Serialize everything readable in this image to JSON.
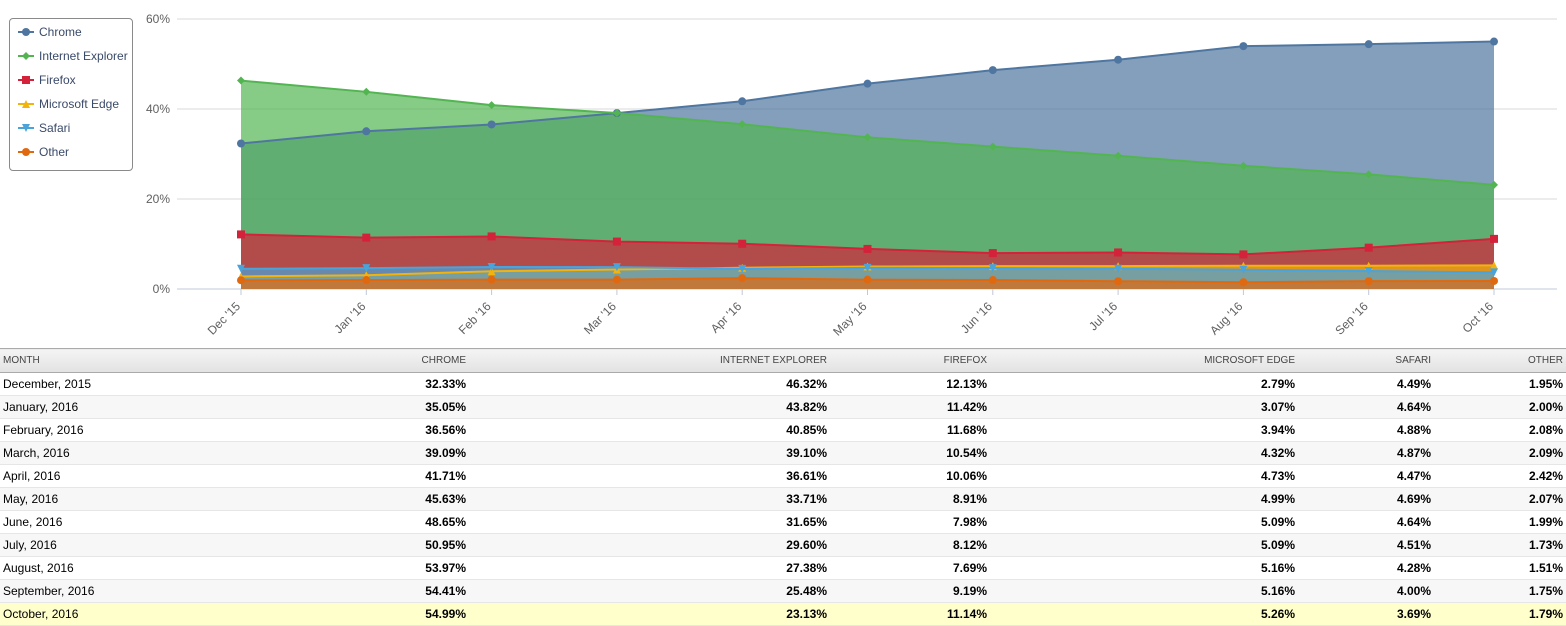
{
  "chart_data": {
    "type": "area",
    "categories": [
      "Dec '15",
      "Jan '16",
      "Feb '16",
      "Mar '16",
      "Apr '16",
      "May '16",
      "Jun '16",
      "Jul '16",
      "Aug '16",
      "Sep '16",
      "Oct '16"
    ],
    "y_ticks": [
      "0%",
      "20%",
      "40%",
      "60%"
    ],
    "ylim": [
      0,
      60
    ],
    "grid": true,
    "legend_position": "top-left",
    "series": [
      {
        "name": "Chrome",
        "color": "#4f76a0",
        "marker": "circle",
        "values": [
          32.33,
          35.05,
          36.56,
          39.09,
          41.71,
          45.63,
          48.65,
          50.95,
          53.97,
          54.41,
          54.99
        ]
      },
      {
        "name": "Internet Explorer",
        "color": "#52b552",
        "marker": "diamond",
        "values": [
          46.32,
          43.82,
          40.85,
          39.1,
          36.61,
          33.71,
          31.65,
          29.6,
          27.38,
          25.48,
          23.13
        ]
      },
      {
        "name": "Firefox",
        "color": "#d3223a",
        "marker": "square",
        "values": [
          12.13,
          11.42,
          11.68,
          10.54,
          10.06,
          8.91,
          7.98,
          8.12,
          7.69,
          9.19,
          11.14
        ]
      },
      {
        "name": "Microsoft Edge",
        "color": "#f2b40c",
        "marker": "triangle",
        "values": [
          2.79,
          3.07,
          3.94,
          4.32,
          4.73,
          4.99,
          5.09,
          5.09,
          5.16,
          5.16,
          5.26
        ]
      },
      {
        "name": "Safari",
        "color": "#4aa3d9",
        "marker": "triangle-down",
        "values": [
          4.49,
          4.64,
          4.88,
          4.87,
          4.47,
          4.69,
          4.64,
          4.51,
          4.28,
          4.0,
          3.69
        ]
      },
      {
        "name": "Other",
        "color": "#e0690f",
        "marker": "circle",
        "values": [
          1.95,
          2.0,
          2.08,
          2.09,
          2.42,
          2.07,
          1.99,
          1.73,
          1.51,
          1.75,
          1.79
        ]
      }
    ]
  },
  "table": {
    "headers": [
      "MONTH",
      "CHROME",
      "INTERNET EXPLORER",
      "FIREFOX",
      "MICROSOFT EDGE",
      "SAFARI",
      "OTHER"
    ],
    "rows": [
      [
        "December, 2015",
        "32.33%",
        "46.32%",
        "12.13%",
        "2.79%",
        "4.49%",
        "1.95%"
      ],
      [
        "January, 2016",
        "35.05%",
        "43.82%",
        "11.42%",
        "3.07%",
        "4.64%",
        "2.00%"
      ],
      [
        "February, 2016",
        "36.56%",
        "40.85%",
        "11.68%",
        "3.94%",
        "4.88%",
        "2.08%"
      ],
      [
        "March, 2016",
        "39.09%",
        "39.10%",
        "10.54%",
        "4.32%",
        "4.87%",
        "2.09%"
      ],
      [
        "April, 2016",
        "41.71%",
        "36.61%",
        "10.06%",
        "4.73%",
        "4.47%",
        "2.42%"
      ],
      [
        "May, 2016",
        "45.63%",
        "33.71%",
        "8.91%",
        "4.99%",
        "4.69%",
        "2.07%"
      ],
      [
        "June, 2016",
        "48.65%",
        "31.65%",
        "7.98%",
        "5.09%",
        "4.64%",
        "1.99%"
      ],
      [
        "July, 2016",
        "50.95%",
        "29.60%",
        "8.12%",
        "5.09%",
        "4.51%",
        "1.73%"
      ],
      [
        "August, 2016",
        "53.97%",
        "27.38%",
        "7.69%",
        "5.16%",
        "4.28%",
        "1.51%"
      ],
      [
        "September, 2016",
        "54.41%",
        "25.48%",
        "9.19%",
        "5.16%",
        "4.00%",
        "1.75%"
      ],
      [
        "October, 2016",
        "54.99%",
        "23.13%",
        "11.14%",
        "5.26%",
        "3.69%",
        "1.79%"
      ]
    ],
    "highlight_color": "#ffffcc"
  }
}
